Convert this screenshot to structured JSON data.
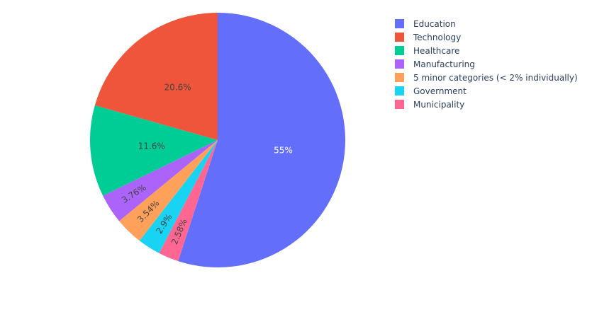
{
  "chart_data": {
    "type": "pie",
    "title": "",
    "direction": "clockwise",
    "start_angle_deg": 90,
    "legend_position": "top-right",
    "slices": [
      {
        "label": "Education",
        "value": 55.0,
        "text": "55%",
        "color": "#636efa",
        "text_color": "#ffffff",
        "rotate_text": false
      },
      {
        "label": "Municipality",
        "value": 2.58,
        "text": "2.58%",
        "color": "#ff6692",
        "text_color": "#444444",
        "rotate_text": true
      },
      {
        "label": "Government",
        "value": 2.9,
        "text": "2.9%",
        "color": "#19d3f3",
        "text_color": "#444444",
        "rotate_text": true
      },
      {
        "label": "5 minor categories (< 2% individually)",
        "value": 3.54,
        "text": "3.54%",
        "color": "#ffa15a",
        "text_color": "#444444",
        "rotate_text": true
      },
      {
        "label": "Manufacturing",
        "value": 3.76,
        "text": "3.76%",
        "color": "#ab63fa",
        "text_color": "#444444",
        "rotate_text": true
      },
      {
        "label": "Healthcare",
        "value": 11.6,
        "text": "11.6%",
        "color": "#00cc96",
        "text_color": "#444444",
        "rotate_text": false
      },
      {
        "label": "Technology",
        "value": 20.6,
        "text": "20.6%",
        "color": "#ef553b",
        "text_color": "#444444",
        "rotate_text": false
      }
    ],
    "legend": [
      {
        "label": "Education",
        "color": "#636efa"
      },
      {
        "label": "Technology",
        "color": "#ef553b"
      },
      {
        "label": "Healthcare",
        "color": "#00cc96"
      },
      {
        "label": "Manufacturing",
        "color": "#ab63fa"
      },
      {
        "label": "5 minor categories (< 2% individually)",
        "color": "#ffa15a"
      },
      {
        "label": "Government",
        "color": "#19d3f3"
      },
      {
        "label": "Municipality",
        "color": "#ff6692"
      }
    ]
  }
}
